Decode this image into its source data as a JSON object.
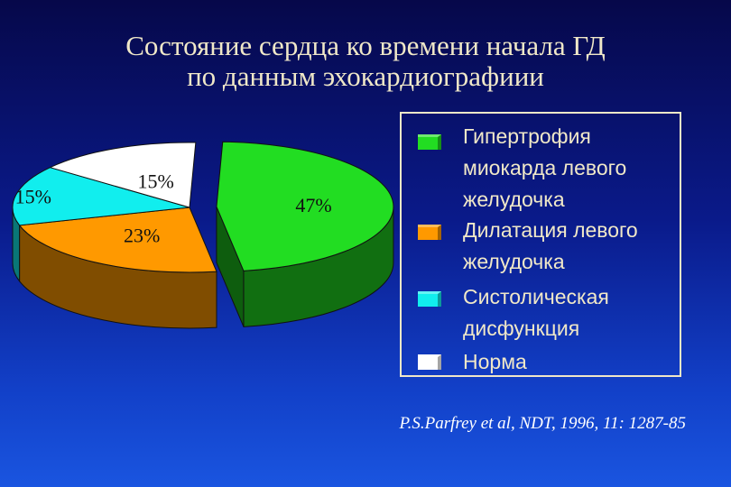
{
  "title_lines": [
    "Состояние сердца ко времени начала ГД",
    "по данным эхокардиографиии"
  ],
  "chart_data": {
    "type": "pie",
    "title": "Состояние сердца ко времени начала ГД по данным эхокардиографиии",
    "slices": [
      {
        "name": "Гипертрофия миокарда левого желудочка",
        "value": 47,
        "label": "47%",
        "color": "#22dd22",
        "exploded": true
      },
      {
        "name": "Дилатация левого желудочка",
        "value": 23,
        "label": "23%",
        "color": "#ff9900",
        "exploded": false
      },
      {
        "name": "Систолическая дисфункция",
        "value": 15,
        "label": "15%",
        "color": "#11eeee",
        "exploded": false
      },
      {
        "name": "Норма",
        "value": 15,
        "label": "15%",
        "color": "#ffffff",
        "exploded": false
      }
    ],
    "legend_placement": "right"
  },
  "legend": {
    "items": [
      {
        "text": "Гипертрофия миокарда левого желудочка",
        "color": "#22dd22"
      },
      {
        "text": "Дилатация левого желудочка",
        "color": "#ff9900"
      },
      {
        "text": "Систолическая дисфункция",
        "color": "#11eeee"
      },
      {
        "text": "Норма",
        "color": "#ffffff"
      }
    ]
  },
  "citation": "P.S.Parfrey et al, NDT, 1996, 11: 1287-85"
}
